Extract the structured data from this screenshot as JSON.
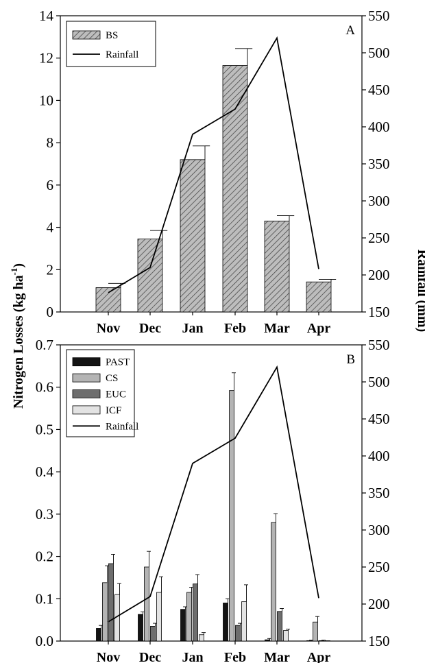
{
  "y_axis_left_label": "Nitrogen Losses (kg ha",
  "y_axis_left_label_sup": "-1",
  "y_axis_left_label_end": ")",
  "y_axis_right_label": "Rainfall (mm)",
  "colors": {
    "BS": "#bdbdbd",
    "PAST": "#141414",
    "CS": "#b4b4b4",
    "EUC": "#6e6e6e",
    "ICF": "#e3e3e3",
    "Rainfall": "#000000"
  },
  "chart_data": [
    {
      "panel": "A",
      "type": "bar",
      "categories": [
        "Nov",
        "Dec",
        "Jan",
        "Feb",
        "Mar",
        "Apr"
      ],
      "series": [
        {
          "name": "BS",
          "pattern": "diagonal-hatch",
          "values": [
            1.15,
            3.45,
            7.2,
            11.65,
            4.3,
            1.42
          ],
          "errors": [
            0.2,
            0.4,
            0.65,
            0.8,
            0.25,
            0.12
          ]
        }
      ],
      "line_series": {
        "name": "Rainfall",
        "axis": "right",
        "values": [
          176,
          210,
          390,
          424,
          520,
          208
        ]
      },
      "ylim_left": [
        0,
        14
      ],
      "yticks_left": [
        0,
        2,
        4,
        6,
        8,
        10,
        12,
        14
      ],
      "ylim_right": [
        150,
        550
      ],
      "yticks_right": [
        150,
        200,
        250,
        300,
        350,
        400,
        450,
        500,
        550
      ],
      "legend": [
        "BS",
        "Rainfall"
      ],
      "legend_position": "top-left"
    },
    {
      "panel": "B",
      "type": "bar",
      "categories": [
        "Nov",
        "Dec",
        "Jan",
        "Feb",
        "Mar",
        "Apr"
      ],
      "series": [
        {
          "name": "PAST",
          "values": [
            0.03,
            0.063,
            0.075,
            0.09,
            0.003,
            0.001
          ],
          "errors": [
            0.007,
            0.006,
            0.006,
            0.01,
            0.003,
            0.001
          ]
        },
        {
          "name": "CS",
          "values": [
            0.138,
            0.175,
            0.115,
            0.592,
            0.28,
            0.045
          ],
          "errors": [
            0.04,
            0.037,
            0.012,
            0.042,
            0.021,
            0.013
          ]
        },
        {
          "name": "EUC",
          "values": [
            0.183,
            0.035,
            0.135,
            0.037,
            0.07,
            0.001
          ],
          "errors": [
            0.022,
            0.007,
            0.022,
            0.005,
            0.007,
            0.001
          ]
        },
        {
          "name": "ICF",
          "values": [
            0.11,
            0.115,
            0.015,
            0.093,
            0.025,
            0.0
          ],
          "errors": [
            0.026,
            0.037,
            0.005,
            0.04,
            0.003,
            0.0
          ]
        }
      ],
      "line_series": {
        "name": "Rainfall",
        "axis": "right",
        "values": [
          176,
          210,
          390,
          424,
          520,
          208
        ]
      },
      "ylim_left": [
        0,
        0.7
      ],
      "yticks_left": [
        "0.0",
        "0.1",
        "0.2",
        "0.3",
        "0.4",
        "0.5",
        "0.6",
        "0.7"
      ],
      "ylim_right": [
        150,
        550
      ],
      "yticks_right": [
        150,
        200,
        250,
        300,
        350,
        400,
        450,
        500,
        550
      ],
      "legend": [
        "PAST",
        "CS",
        "EUC",
        "ICF",
        "Rainfall"
      ],
      "legend_position": "top-left"
    }
  ]
}
